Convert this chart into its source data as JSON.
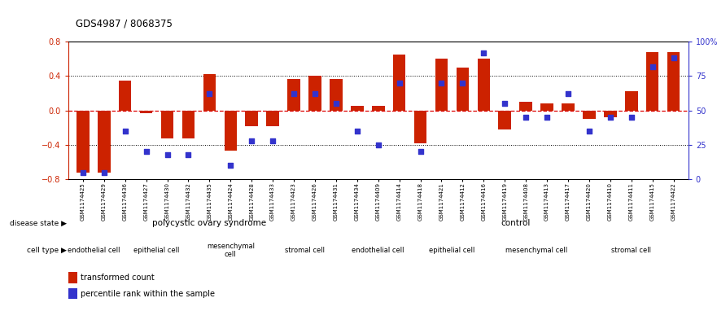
{
  "title": "GDS4987 / 8068375",
  "samples": [
    "GSM1174425",
    "GSM1174429",
    "GSM1174436",
    "GSM1174427",
    "GSM1174430",
    "GSM1174432",
    "GSM1174435",
    "GSM1174424",
    "GSM1174428",
    "GSM1174433",
    "GSM1174423",
    "GSM1174426",
    "GSM1174431",
    "GSM1174434",
    "GSM1174409",
    "GSM1174414",
    "GSM1174418",
    "GSM1174421",
    "GSM1174412",
    "GSM1174416",
    "GSM1174419",
    "GSM1174408",
    "GSM1174413",
    "GSM1174417",
    "GSM1174420",
    "GSM1174410",
    "GSM1174411",
    "GSM1174415",
    "GSM1174422"
  ],
  "bar_values": [
    -0.72,
    -0.72,
    0.35,
    -0.03,
    -0.33,
    -0.33,
    0.42,
    -0.47,
    -0.18,
    -0.18,
    0.37,
    0.4,
    0.37,
    0.05,
    0.05,
    0.65,
    -0.38,
    0.6,
    0.5,
    0.6,
    -0.22,
    0.1,
    0.08,
    0.08,
    -0.1,
    -0.08,
    0.22,
    0.68,
    0.68
  ],
  "blue_values": [
    5,
    5,
    35,
    20,
    18,
    18,
    62,
    10,
    28,
    28,
    62,
    62,
    55,
    35,
    25,
    70,
    20,
    70,
    70,
    92,
    55,
    45,
    45,
    62,
    35,
    45,
    45,
    82,
    88
  ],
  "disease_state_groups": [
    {
      "label": "polycystic ovary syndrome",
      "start": 0,
      "end": 13,
      "color": "#99EE99"
    },
    {
      "label": "control",
      "start": 13,
      "end": 29,
      "color": "#55CC55"
    }
  ],
  "cell_type_groups": [
    {
      "label": "endothelial cell",
      "start": 0,
      "end": 2,
      "color": "#EE99EE"
    },
    {
      "label": "epithelial cell",
      "start": 2,
      "end": 6,
      "color": "#EE99EE"
    },
    {
      "label": "mesenchymal\ncell",
      "start": 6,
      "end": 9,
      "color": "#EE99EE"
    },
    {
      "label": "stromal cell",
      "start": 9,
      "end": 13,
      "color": "#EE99EE"
    },
    {
      "label": "endothelial cell",
      "start": 13,
      "end": 16,
      "color": "#EE99EE"
    },
    {
      "label": "epithelial cell",
      "start": 16,
      "end": 20,
      "color": "#EE99EE"
    },
    {
      "label": "mesenchymal cell",
      "start": 20,
      "end": 24,
      "color": "#EE99EE"
    },
    {
      "label": "stromal cell",
      "start": 24,
      "end": 29,
      "color": "#EE99EE"
    }
  ],
  "ylim": [
    -0.8,
    0.8
  ],
  "y2lim": [
    0,
    100
  ],
  "yticks": [
    -0.8,
    -0.4,
    0.0,
    0.4,
    0.8
  ],
  "y2ticks": [
    0,
    25,
    50,
    75,
    100
  ],
  "bar_color": "#CC2200",
  "dot_color": "#3333CC",
  "hline0_color": "#DD0000",
  "dotted_color": "#000000",
  "bg_color": "#FFFFFF"
}
